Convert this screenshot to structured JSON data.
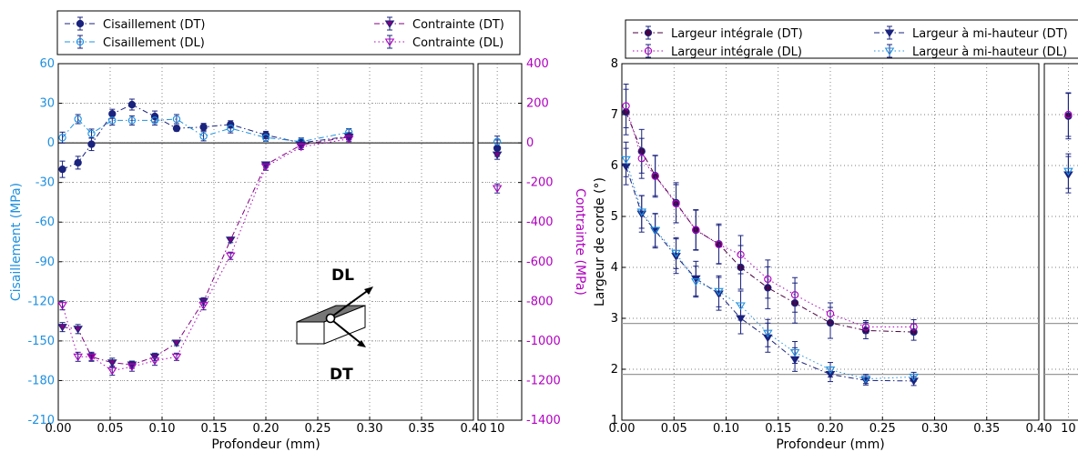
{
  "chart_data": [
    {
      "type": "scatter",
      "xlabel": "Profondeur (mm)",
      "ylabel_left": "Cisaillement (MPa)",
      "ylabel_right": "Contrainte (MPa)",
      "left_axis_color": "#1e90e0",
      "right_axis_color": "#b000c0",
      "xlim": [
        0.0,
        0.4
      ],
      "xticks": [
        "0.00",
        "0.05",
        "0.10",
        "0.15",
        "0.20",
        "0.25",
        "0.30",
        "0.35",
        "0.40"
      ],
      "ylim_left": [
        -210,
        60
      ],
      "yticks_left": [
        "-210",
        "-180",
        "-150",
        "-120",
        "-90",
        "-60",
        "-30",
        "0",
        "30",
        "60"
      ],
      "ylim_right": [
        -1400,
        400
      ],
      "yticks_right": [
        "-1400",
        "-1200",
        "-1000",
        "-800",
        "-600",
        "-400",
        "-200",
        "0",
        "200",
        "400"
      ],
      "inset_xtick": "10",
      "legend_placement": "top",
      "grid": true,
      "x": [
        0.004,
        0.019,
        0.032,
        0.052,
        0.071,
        0.093,
        0.114,
        0.14,
        0.166,
        0.2,
        0.234,
        0.28
      ],
      "series": [
        {
          "name": "Cisaillement (DT)",
          "axis": "left",
          "color": "#1a237e",
          "marker": "filled-circle",
          "line": "dashdot",
          "values": [
            -20,
            -15,
            -1,
            22,
            29,
            20,
            11,
            12,
            14,
            6,
            0,
            5
          ],
          "inset_value": -4
        },
        {
          "name": "Cisaillement (DL)",
          "axis": "left",
          "color": "#1e90e0",
          "marker": "open-circle",
          "line": "dashdot",
          "values": [
            4,
            18,
            7,
            17,
            17,
            17,
            18,
            5,
            11,
            4,
            1,
            8
          ],
          "inset_value": 1
        },
        {
          "name": "Contrainte (DT)",
          "axis": "right",
          "color": "#800080",
          "marker": "filled-triangle-down",
          "line": "dashdot",
          "values": [
            -930,
            -940,
            -1080,
            -1110,
            -1120,
            -1080,
            -1010,
            -800,
            -490,
            -110,
            -10,
            30
          ],
          "inset_value": -60
        },
        {
          "name": "Contrainte (DL)",
          "axis": "right",
          "color": "#b000c0",
          "marker": "open-triangle-down",
          "line": "dotted",
          "values": [
            -820,
            -1080,
            -1080,
            -1150,
            -1130,
            -1100,
            -1080,
            -820,
            -570,
            -120,
            -20,
            20
          ],
          "inset_value": -230
        }
      ],
      "annotations": [
        "DL",
        "DT"
      ]
    },
    {
      "type": "scatter",
      "xlabel": "Profondeur (mm)",
      "ylabel": "Largeur de corde (°)",
      "xlim": [
        0.0,
        0.4
      ],
      "xticks": [
        "0.00",
        "0.05",
        "0.10",
        "0.15",
        "0.20",
        "0.25",
        "0.30",
        "0.35",
        "0.40"
      ],
      "ylim": [
        1,
        8
      ],
      "yticks": [
        "1",
        "2",
        "3",
        "4",
        "5",
        "6",
        "7",
        "8"
      ],
      "inset_xtick": "10",
      "reference_lines": [
        2.9,
        1.9
      ],
      "legend_placement": "top",
      "grid": true,
      "x": [
        0.004,
        0.019,
        0.032,
        0.052,
        0.071,
        0.093,
        0.114,
        0.14,
        0.166,
        0.2,
        0.234,
        0.28
      ],
      "series": [
        {
          "name": "Largeur intégrale (DT)",
          "color": "#4a0040",
          "marker": "filled-circle",
          "line": "dashdot",
          "values": [
            7.05,
            6.28,
            5.8,
            5.27,
            4.73,
            4.46,
            4.0,
            3.6,
            3.3,
            2.91,
            2.76,
            2.73
          ],
          "inset_value": 6.97
        },
        {
          "name": "Largeur intégrale (DL)",
          "color": "#b000c0",
          "marker": "open-circle",
          "line": "dotted",
          "values": [
            7.17,
            6.14,
            5.79,
            5.25,
            4.74,
            4.45,
            4.25,
            3.77,
            3.46,
            3.09,
            2.83,
            2.83
          ],
          "inset_value": 7.0
        },
        {
          "name": "Largeur à mi-hauteur (DT)",
          "color": "#1a237e",
          "marker": "filled-triangle-down",
          "line": "dashdot",
          "values": [
            5.98,
            5.05,
            4.72,
            4.22,
            3.78,
            3.48,
            3.0,
            2.62,
            2.19,
            1.9,
            1.78,
            1.77
          ],
          "inset_value": 5.82
        },
        {
          "name": "Largeur à mi-hauteur (DL)",
          "color": "#1e90e0",
          "marker": "open-triangle-down",
          "line": "dotted",
          "values": [
            6.12,
            5.09,
            4.73,
            4.28,
            3.72,
            3.53,
            3.25,
            2.71,
            2.33,
            1.99,
            1.81,
            1.85
          ],
          "inset_value": 5.89
        }
      ]
    }
  ]
}
